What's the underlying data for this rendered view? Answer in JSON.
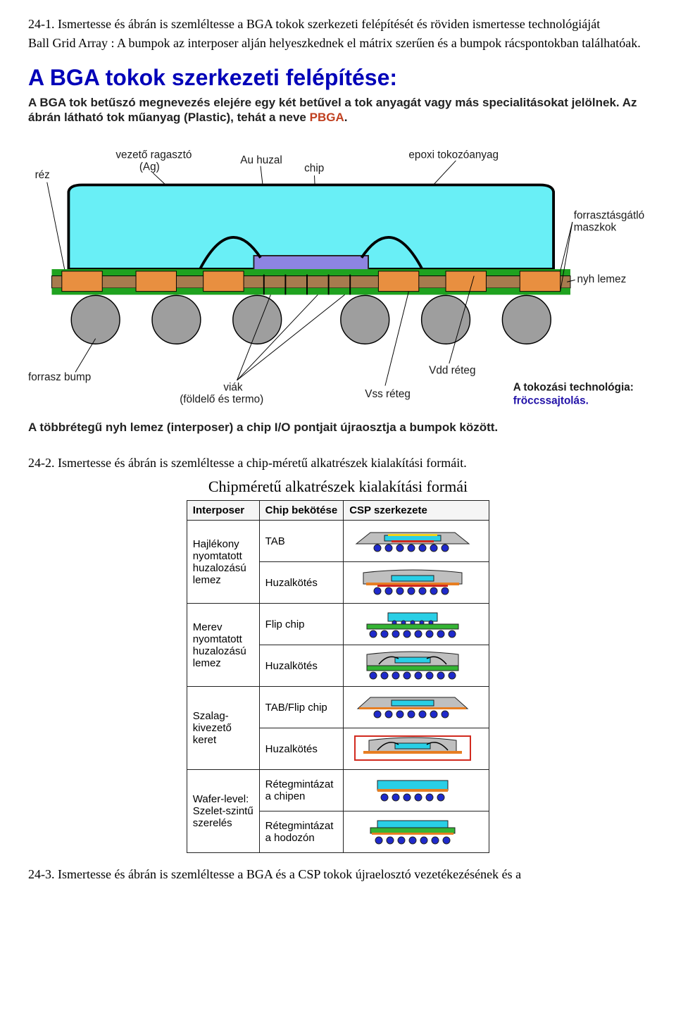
{
  "q1": {
    "number": "24-1.",
    "title": "Ismertesse és ábrán is szemléltesse a BGA tokok szerkezeti felépítését és röviden ismertesse technológiáját",
    "para": "Ball Grid Array : A bumpok az interposer alján helyeszkednek el mátrix szerűen és a bumpok rácspontokban találhatóak."
  },
  "bga": {
    "title": "A BGA tokok szerkezeti felépítése:",
    "sub_pre": "A BGA tok betűszó megnevezés elejére egy két betűvel a tok anyagát vagy más specialitásokat jelölnek. Az ábrán látható tok műanyag (Plastic), tehát a neve ",
    "sub_hl": "PBGA",
    "sub_post": ".",
    "labels": {
      "rez": "réz",
      "adhesive": "vezető ragasztó\n(Ag)",
      "au": "Au huzal",
      "chip": "chip",
      "epoxy": "epoxi tokozóanyag",
      "soldermask": "forrasztásgátló\nmaszkok",
      "nyh": "nyh lemez",
      "bump": "forrasz bump",
      "via": "viák\n(földelő és termo)",
      "vss": "Vss réteg",
      "vdd": "Vdd réteg",
      "techlabel": "A tokozási technológia:",
      "tech": "fröccssajtolás."
    },
    "colors": {
      "bg": "#ffffff",
      "epoxy": "#69eff6",
      "chip": "#8d84e2",
      "base": "#a77b4e",
      "copper": "#e88f40",
      "green": "#1fa21f",
      "solder": "#9e9e9e",
      "grey": "#b0b0b0",
      "outline": "#000000",
      "txt": "#1a1a1a",
      "techtxt": "#2212a8"
    },
    "footer": "A többrétegű nyh lemez (interposer) a chip I/O pontjait újraosztja a bumpok között."
  },
  "q2": {
    "number": "24-2.",
    "title": "Ismertesse és ábrán is szemléltesse a chip-méretű alkatrészek kialakítási formáit.",
    "section_title": "Chipméretű alkatrészek kialakítási formái",
    "headers": [
      "Interposer",
      "Chip bekötése",
      "CSP szerkezete"
    ],
    "rows": [
      {
        "c0": "Hajlékony\nnyomtatott\nhuzalozású\nlemez",
        "c1": "TAB",
        "mini": "tab_flex",
        "rs": 2
      },
      {
        "c1": "Huzalkötés",
        "mini": "wire_flex"
      },
      {
        "c0": "Merev\nnyomtatott\nhuzalozású\nlemez",
        "c1": "Flip chip",
        "mini": "flip_rigid",
        "rs": 2
      },
      {
        "c1": "Huzalkötés",
        "mini": "wire_rigid"
      },
      {
        "c0": "Szalag-\nkivezető\nkeret",
        "c1": "TAB/Flip chip",
        "mini": "tab_lead",
        "rs": 2
      },
      {
        "c1": "Huzalkötés",
        "mini": "wire_lead"
      },
      {
        "c0": "Wafer-level:\nSzelet-szintű\nszerelés",
        "c1": "Rétegmintázat\na chipen",
        "mini": "wl_chip",
        "rs": 2
      },
      {
        "c1": "Rétegmintázat\na hodozón",
        "mini": "wl_carrier"
      }
    ]
  },
  "q3": {
    "number": "24-3.",
    "title": "Ismertesse és ábrán is szemléltesse a BGA és a CSP tokok újraelosztó vezetékezésének és a"
  },
  "mini_colors": {
    "ball": "#1f2acb",
    "board": "#34b434",
    "chip": "#29cfe6",
    "mold": "#bfbfbf",
    "cu": "#e77e22",
    "red": "#d12a1f",
    "yellow": "#f2d21a",
    "outline": "#222"
  }
}
